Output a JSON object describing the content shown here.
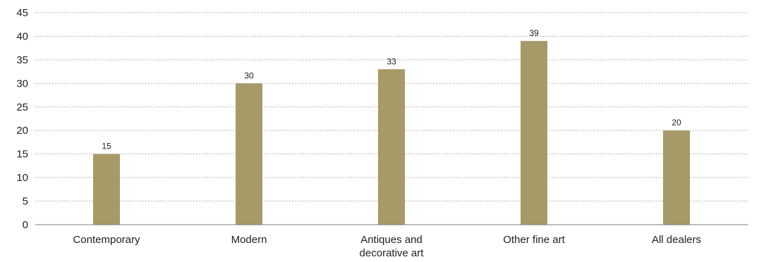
{
  "chart_data": {
    "type": "bar",
    "categories": [
      [
        "Contemporary"
      ],
      [
        "Modern"
      ],
      [
        "Antiques and",
        "decorative art"
      ],
      [
        "Other fine art"
      ],
      [
        "All dealers"
      ]
    ],
    "values": [
      15,
      30,
      33,
      39,
      20
    ],
    "data_labels": [
      "15",
      "30",
      "33",
      "39",
      "20"
    ],
    "title": "",
    "xlabel": "",
    "ylabel": "",
    "ylim": [
      0,
      45
    ],
    "yticks": [
      0,
      5,
      10,
      15,
      20,
      25,
      30,
      35,
      40,
      45
    ],
    "ytick_labels": [
      "0",
      "5",
      "10",
      "15",
      "20",
      "25",
      "30",
      "35",
      "40",
      "45"
    ],
    "grid": true,
    "legend": "none",
    "bar_color": "#a69a68"
  }
}
